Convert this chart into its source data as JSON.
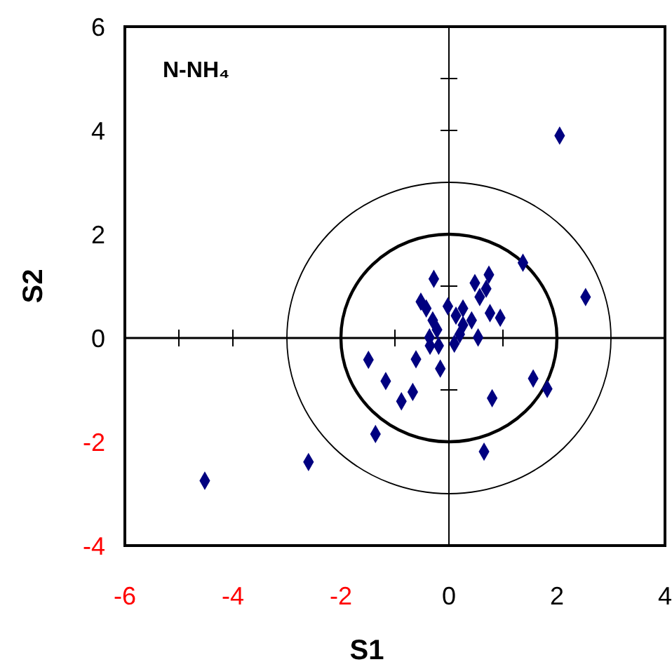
{
  "chart_data": {
    "type": "scatter",
    "title": "N-NH₄",
    "xlabel": "S1",
    "ylabel": "S2",
    "xlim": [
      -6,
      4
    ],
    "xticks": [
      -6,
      -4,
      -2,
      0,
      2,
      4
    ],
    "ylim": [
      -4,
      6
    ],
    "yticks": [
      -4,
      -2,
      0,
      2,
      4,
      6
    ],
    "grid": false,
    "legend": false,
    "marker": "diamond",
    "ref_lines": [
      {
        "axis": "x",
        "value": 0,
        "color": "#000000"
      },
      {
        "axis": "y",
        "value": 0,
        "color": "#000000"
      }
    ],
    "series": [
      {
        "color": "#000080",
        "x": [
          2.05,
          -4.52,
          -2.6,
          -0.28,
          0.74,
          0.48,
          0.69,
          0.57,
          1.37,
          2.53,
          -0.52,
          -0.42,
          -0.3,
          -0.02,
          0.26,
          0.13,
          0.42,
          0.26,
          0.76,
          0.95,
          -0.22,
          0.2,
          0.54,
          -0.36,
          -0.35,
          -0.19,
          0.1,
          -1.49,
          -0.61,
          -0.16,
          -1.17,
          -0.67,
          -0.88,
          -1.36,
          1.56,
          1.82,
          0.8,
          0.65
        ],
        "values": [
          3.9,
          -2.75,
          -2.39,
          1.14,
          1.22,
          1.06,
          0.95,
          0.79,
          1.45,
          0.79,
          0.7,
          0.57,
          0.34,
          0.61,
          0.57,
          0.43,
          0.34,
          0.25,
          0.48,
          0.39,
          0.16,
          0.07,
          0.01,
          0.01,
          -0.15,
          -0.15,
          -0.11,
          -0.42,
          -0.41,
          -0.59,
          -0.83,
          -1.04,
          -1.22,
          -1.85,
          -0.78,
          -0.98,
          -1.16,
          -2.19
        ]
      }
    ]
  }
}
